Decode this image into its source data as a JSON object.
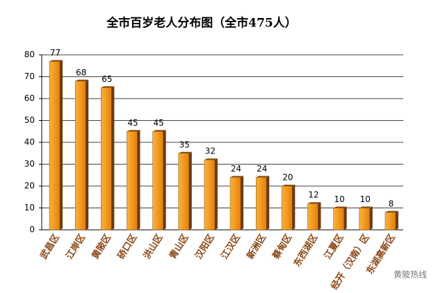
{
  "chart_data": {
    "type": "bar",
    "title": "全市百岁老人分布图（全市475人）",
    "categories": [
      "武昌区",
      "江岸区",
      "黄陂区",
      "硚口区",
      "洪山区",
      "青山区",
      "汉阳区",
      "江汉区",
      "新洲区",
      "蔡甸区",
      "东西湖区",
      "江夏区",
      "经开（汉南）区",
      "东湖高新区"
    ],
    "values": [
      77,
      68,
      65,
      45,
      45,
      35,
      32,
      24,
      24,
      20,
      12,
      10,
      10,
      8
    ],
    "color": "#f39a1e",
    "ylim": [
      0,
      80
    ],
    "yticks": [
      0,
      10,
      20,
      30,
      40,
      50,
      60,
      70,
      80
    ],
    "grid": true,
    "watermark": "黄陂热线"
  }
}
